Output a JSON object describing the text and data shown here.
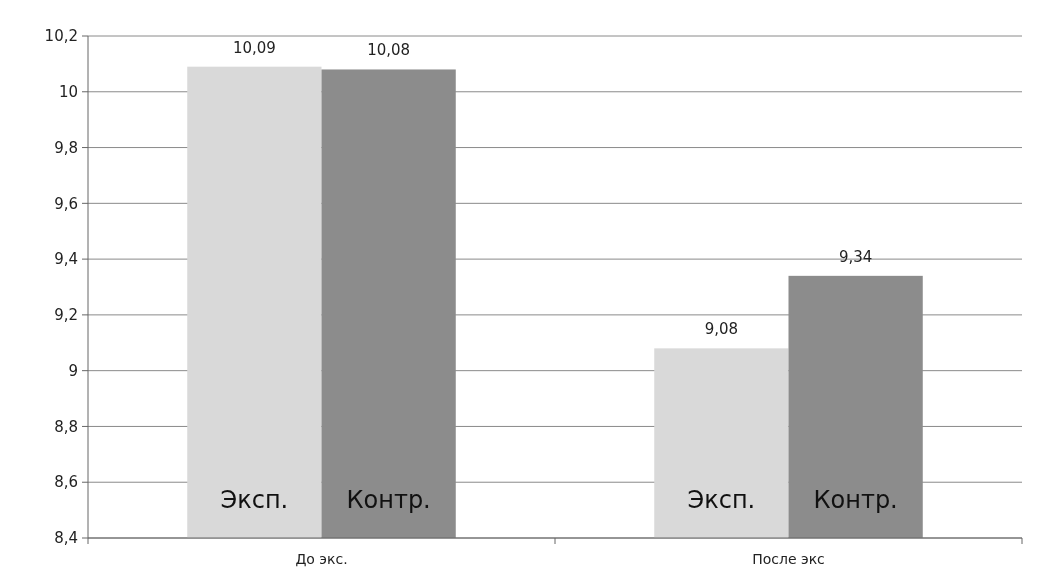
{
  "chart_data": {
    "type": "bar",
    "categories": [
      "До экс.",
      "После экс"
    ],
    "series": [
      {
        "name": "Эксп.",
        "color": "#d9d9d9",
        "values": [
          10.09,
          9.08
        ],
        "value_labels": [
          "10,09",
          "9,08"
        ]
      },
      {
        "name": "Контр.",
        "color": "#8c8c8c",
        "values": [
          10.08,
          9.34
        ],
        "value_labels": [
          "10,08",
          "9,34"
        ]
      }
    ],
    "ylim": [
      8.4,
      10.2
    ],
    "yticks": [
      {
        "value": 8.4,
        "label": "8,4"
      },
      {
        "value": 8.6,
        "label": "8,6"
      },
      {
        "value": 8.8,
        "label": "8,8"
      },
      9,
      {
        "value": 9.2,
        "label": "9,2"
      },
      {
        "value": 9.4,
        "label": "9,4"
      },
      {
        "value": 9.6,
        "label": "9,6"
      },
      {
        "value": 9.8,
        "label": "9,8"
      },
      10,
      {
        "value": 10.2,
        "label": "10,2"
      }
    ],
    "grid": "y"
  }
}
